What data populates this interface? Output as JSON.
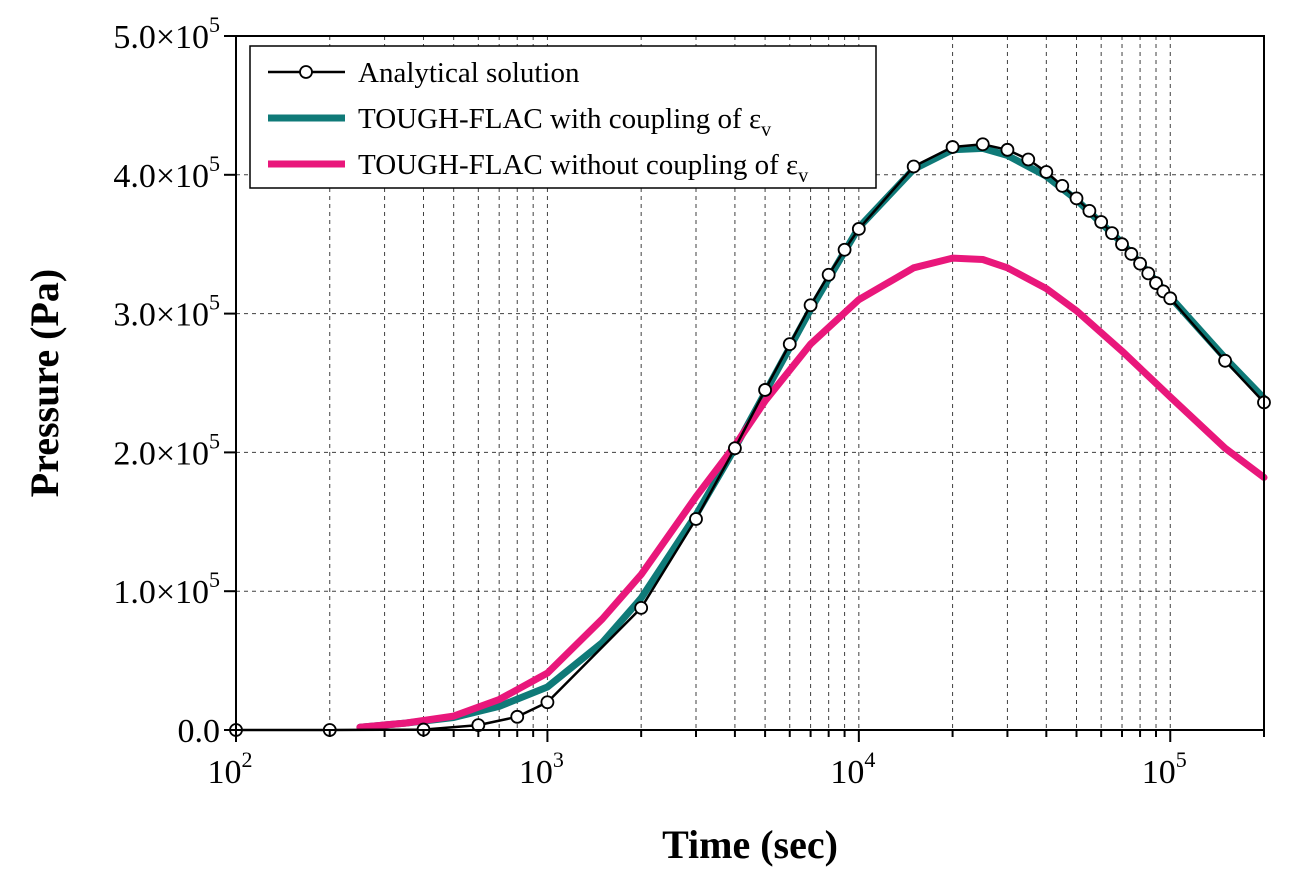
{
  "chart_data": {
    "type": "line",
    "xlabel": "Time (sec)",
    "ylabel": "Pressure (Pa)",
    "x_scale": "log",
    "xlim": [
      100,
      200000
    ],
    "ylim": [
      0,
      500000
    ],
    "x_ticks": [
      {
        "base": "10",
        "exp": "2"
      },
      {
        "base": "10",
        "exp": "3"
      },
      {
        "base": "10",
        "exp": "4"
      },
      {
        "base": "10",
        "exp": "5"
      }
    ],
    "y_ticks": [
      {
        "value": 0,
        "label": "0.0",
        "base": "",
        "exp": ""
      },
      {
        "value": 100000,
        "label": "1.0×10",
        "base": "1.0×10",
        "exp": "5"
      },
      {
        "value": 200000,
        "label": "2.0×10",
        "base": "2.0×10",
        "exp": "5"
      },
      {
        "value": 300000,
        "label": "3.0×10",
        "base": "3.0×10",
        "exp": "5"
      },
      {
        "value": 400000,
        "label": "4.0×10",
        "base": "4.0×10",
        "exp": "5"
      },
      {
        "value": 500000,
        "label": "5.0×10",
        "base": "5.0×10",
        "exp": "5"
      }
    ],
    "grid": true,
    "legend_position": "top-left",
    "series": [
      {
        "name": "Analytical solution",
        "color": "#000000",
        "marker": "open-circle",
        "x": [
          100,
          200,
          400,
          600,
          800,
          1000,
          2000,
          3000,
          4000,
          5000,
          6000,
          7000,
          8000,
          9000,
          10000,
          15000,
          20000,
          25000,
          30000,
          35000,
          40000,
          45000,
          50000,
          55000,
          60000,
          65000,
          70000,
          75000,
          80000,
          85000,
          90000,
          95000,
          100000,
          150000,
          200000
        ],
        "y": [
          0,
          0,
          300,
          3500,
          9500,
          20000,
          88000,
          152000,
          203000,
          245000,
          278000,
          306000,
          328000,
          346000,
          361000,
          406000,
          420000,
          422000,
          418000,
          411000,
          402000,
          392000,
          383000,
          374000,
          366000,
          358000,
          350000,
          343000,
          336000,
          329000,
          322000,
          316000,
          311000,
          266000,
          236000
        ]
      },
      {
        "name": "TOUGH-FLAC with coupling of ",
        "sym": "ε",
        "sub": "v",
        "color": "#0f7a78",
        "x": [
          250,
          350,
          500,
          700,
          1000,
          1500,
          2000,
          3000,
          4000,
          5000,
          7000,
          10000,
          15000,
          20000,
          25000,
          30000,
          40000,
          50000,
          70000,
          100000,
          150000,
          200000
        ],
        "y": [
          2000,
          5000,
          9000,
          17000,
          31000,
          63000,
          95000,
          155000,
          203000,
          243000,
          303000,
          362000,
          404000,
          418000,
          419000,
          414000,
          399000,
          382000,
          351000,
          312000,
          268000,
          239000
        ]
      },
      {
        "name": "TOUGH-FLAC without coupling of ",
        "sym": "ε",
        "sub": "v",
        "color": "#e9177b",
        "x": [
          250,
          350,
          500,
          700,
          1000,
          1500,
          2000,
          3000,
          4000,
          5000,
          7000,
          10000,
          15000,
          20000,
          25000,
          30000,
          40000,
          50000,
          70000,
          100000,
          150000,
          200000
        ],
        "y": [
          2000,
          5000,
          10000,
          22000,
          41000,
          80000,
          112000,
          168000,
          205000,
          237000,
          278000,
          310000,
          333000,
          340000,
          339000,
          333000,
          318000,
          302000,
          273000,
          240000,
          203000,
          182000
        ]
      }
    ]
  }
}
